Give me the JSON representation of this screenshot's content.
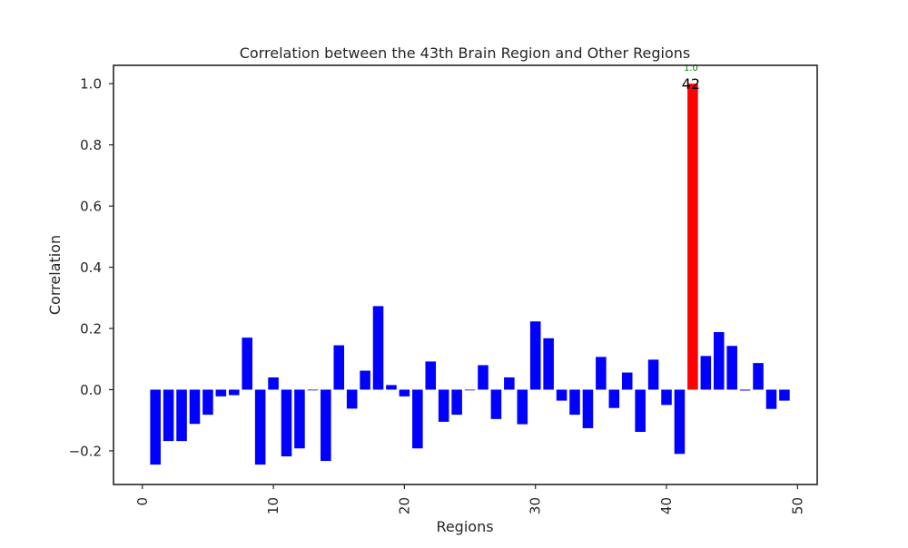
{
  "chart_data": {
    "type": "bar",
    "title": "Correlation between the 43th Brain Region and Other Regions",
    "xlabel": "Regions",
    "ylabel": "Correlation",
    "xlim": [
      -2.2,
      51.5
    ],
    "ylim": [
      -0.31,
      1.06
    ],
    "xticks": [
      0,
      10,
      20,
      30,
      40,
      50
    ],
    "yticks": [
      -0.2,
      0.0,
      0.2,
      0.4,
      0.6,
      0.8,
      1.0
    ],
    "ytick_labels": [
      "−0.2",
      "0.0",
      "0.2",
      "0.4",
      "0.6",
      "0.8",
      "1.0"
    ],
    "grid": false,
    "colors": {
      "bar": "#0000ff",
      "highlight": "#ff0000",
      "annotation": "#008000"
    },
    "x": [
      1,
      2,
      3,
      4,
      5,
      6,
      7,
      8,
      9,
      10,
      11,
      12,
      13,
      14,
      15,
      16,
      17,
      18,
      19,
      20,
      21,
      22,
      23,
      24,
      25,
      26,
      27,
      28,
      29,
      30,
      31,
      32,
      33,
      34,
      35,
      36,
      37,
      38,
      39,
      40,
      41,
      42,
      43,
      44,
      45,
      46,
      47,
      48,
      49
    ],
    "values": [
      -0.245,
      -0.168,
      -0.168,
      -0.112,
      -0.082,
      -0.022,
      -0.018,
      0.17,
      -0.245,
      0.04,
      -0.218,
      -0.192,
      0.0,
      -0.233,
      0.145,
      -0.062,
      0.062,
      0.273,
      0.015,
      -0.022,
      -0.192,
      0.092,
      -0.105,
      -0.082,
      0.0,
      0.08,
      -0.096,
      0.04,
      -0.113,
      0.223,
      0.168,
      -0.036,
      -0.082,
      -0.126,
      0.107,
      -0.06,
      0.056,
      -0.138,
      0.098,
      -0.05,
      -0.21,
      1.0,
      0.11,
      0.188,
      0.143,
      -0.003,
      0.087,
      -0.063,
      -0.036
    ],
    "highlight": {
      "x": 42,
      "value_label": "1.0",
      "index_label": "42"
    }
  }
}
